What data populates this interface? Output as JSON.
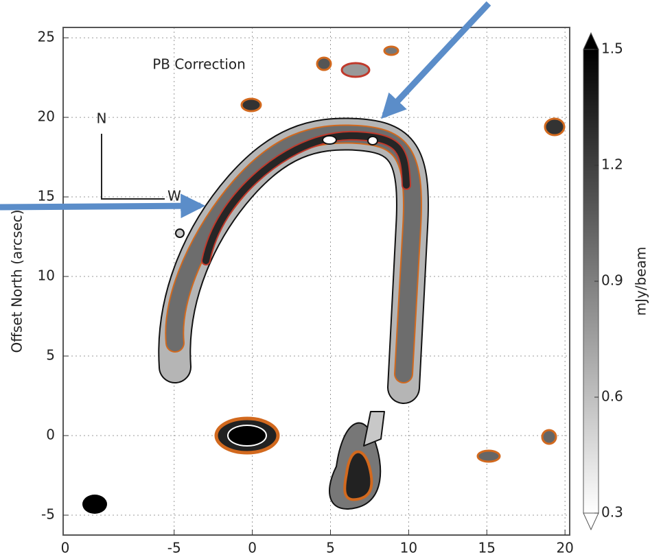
{
  "chart_data": {
    "type": "image",
    "annotations": [
      "PB Correction",
      "N",
      "W"
    ],
    "ylabel": "Offset North (arcsec)",
    "colorbar_label": "mJy/beam",
    "xlim": [
      -12.1,
      20.3
    ],
    "xticks": [
      -5,
      0,
      5,
      10,
      15,
      20
    ],
    "x_edge_label": "0",
    "ylim": [
      -6.25,
      25.65
    ],
    "yticks": [
      -5,
      0,
      5,
      10,
      15,
      20,
      25
    ],
    "clim": [
      0.3,
      1.5
    ],
    "cticks": [
      0.3,
      0.6,
      0.9,
      1.2,
      1.5
    ],
    "grid": true
  }
}
